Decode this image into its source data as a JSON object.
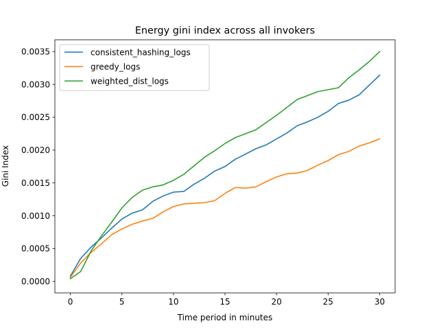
{
  "chart_data": {
    "type": "line",
    "title": "Energy gini index across all invokers",
    "xlabel": "Time period in minutes",
    "ylabel": "Gini Index",
    "xlim": [
      -1.5,
      31.5
    ],
    "ylim": [
      -0.000175,
      0.00368
    ],
    "xticks": [
      0,
      5,
      10,
      15,
      20,
      25,
      30
    ],
    "xtick_labels": [
      "0",
      "5",
      "10",
      "15",
      "20",
      "25",
      "30"
    ],
    "yticks": [
      0,
      0.0005,
      0.001,
      0.0015,
      0.002,
      0.0025,
      0.003,
      0.0035
    ],
    "ytick_labels": [
      "0.0000",
      "0.0005",
      "0.0010",
      "0.0015",
      "0.0020",
      "0.0025",
      "0.0030",
      "0.0035"
    ],
    "grid": false,
    "legend_position": "upper-left",
    "x": [
      0,
      1,
      2,
      3,
      4,
      5,
      6,
      7,
      8,
      9,
      10,
      11,
      12,
      13,
      14,
      15,
      16,
      17,
      18,
      19,
      20,
      21,
      22,
      23,
      24,
      25,
      26,
      27,
      28,
      29,
      30
    ],
    "series": [
      {
        "name": "consistent_hashing_logs",
        "color": "#1f77b4",
        "values": [
          8e-05,
          0.00035,
          0.00052,
          0.00066,
          0.00081,
          0.00095,
          0.00104,
          0.00109,
          0.00122,
          0.0013,
          0.00136,
          0.00137,
          0.00148,
          0.00157,
          0.00168,
          0.00175,
          0.00186,
          0.00194,
          0.00202,
          0.00208,
          0.00217,
          0.00226,
          0.00237,
          0.00243,
          0.0025,
          0.00259,
          0.00271,
          0.00276,
          0.00284,
          0.00299,
          0.00314
        ]
      },
      {
        "name": "greedy_logs",
        "color": "#ff7f0e",
        "values": [
          6e-05,
          0.00028,
          0.00044,
          0.00057,
          0.00071,
          0.0008,
          0.00087,
          0.00092,
          0.00096,
          0.00106,
          0.00114,
          0.00118,
          0.00119,
          0.0012,
          0.00123,
          0.00134,
          0.00143,
          0.00142,
          0.00144,
          0.00152,
          0.00159,
          0.00164,
          0.00165,
          0.00169,
          0.00177,
          0.00184,
          0.00193,
          0.00198,
          0.00206,
          0.00211,
          0.00217
        ]
      },
      {
        "name": "weighted_dist_logs",
        "color": "#2ca02c",
        "values": [
          4e-05,
          0.00015,
          0.00046,
          0.00069,
          0.0009,
          0.00112,
          0.00128,
          0.00139,
          0.00144,
          0.00147,
          0.00154,
          0.00163,
          0.00176,
          0.00189,
          0.00199,
          0.0021,
          0.00219,
          0.00225,
          0.00231,
          0.00242,
          0.00253,
          0.00265,
          0.00277,
          0.00283,
          0.00289,
          0.00292,
          0.00295,
          0.0031,
          0.00322,
          0.00335,
          0.0035
        ]
      }
    ]
  }
}
